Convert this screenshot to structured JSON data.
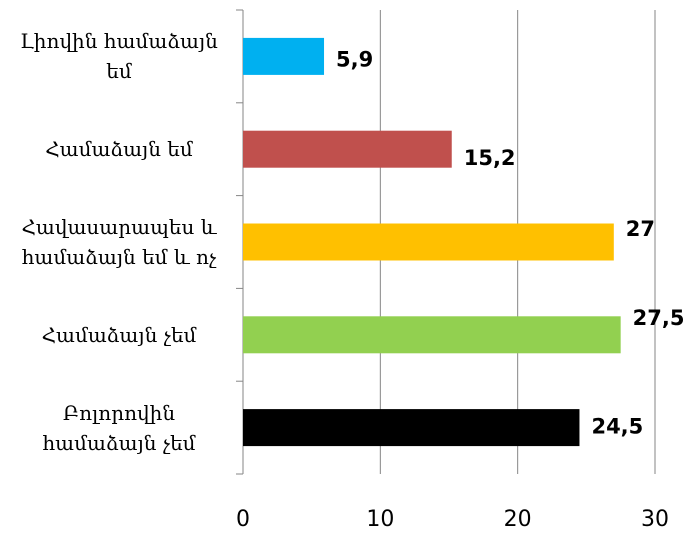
{
  "chart_data": {
    "type": "bar",
    "orientation": "horizontal",
    "categories": [
      "Լիովին համաձայն եմ",
      "Համաձայն եմ",
      "Հավասարապես և համաձայն եմ և ոչ",
      "Համաձայն չեմ",
      "Բոլորովին համաձայն չեմ"
    ],
    "values": [
      5.9,
      15.2,
      27,
      27.5,
      24.5
    ],
    "value_labels": [
      "5,9",
      "15,2",
      "27",
      "27,5",
      "24,5"
    ],
    "colors": [
      "#00b0f0",
      "#c0504d",
      "#ffc000",
      "#92d050",
      "#000000"
    ],
    "xlim": [
      0,
      30
    ],
    "xticks": [
      0,
      10,
      20,
      30
    ],
    "grid": true
  }
}
